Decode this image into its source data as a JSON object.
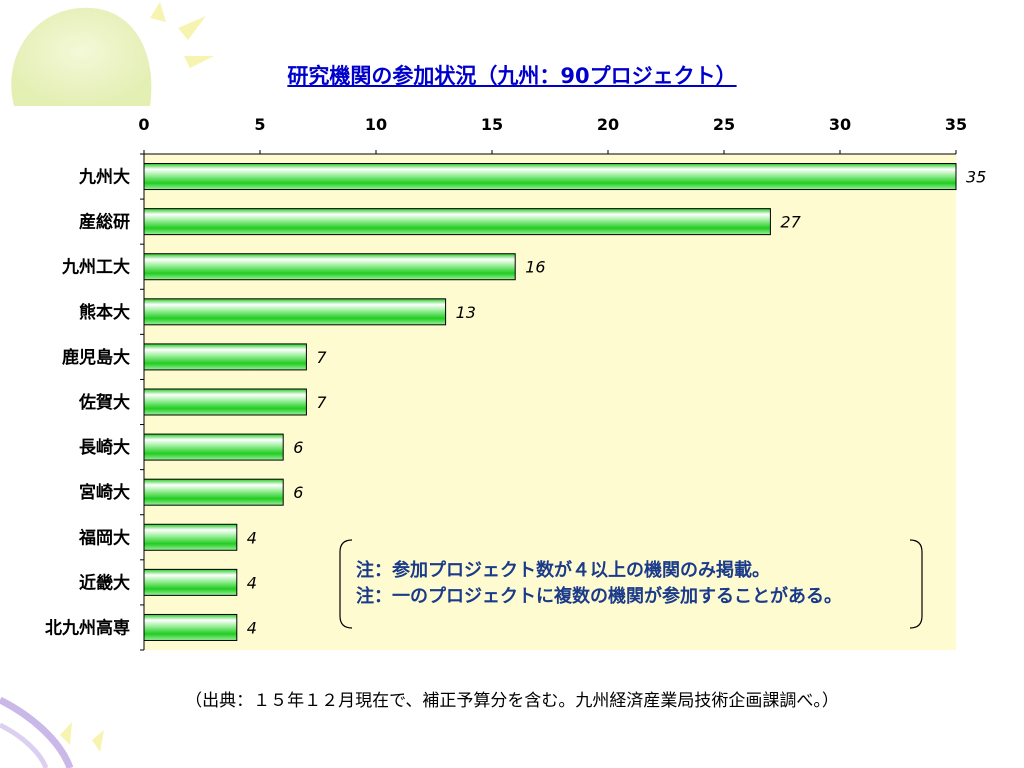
{
  "title": "研究機関の参加状況（九州：90プロジェクト）",
  "notes": [
    "注：参加プロジェクト数が４以上の機関のみ掲載。",
    "注：一のプロジェクトに複数の機関が参加することがある。"
  ],
  "source": "（出典：１５年１２月現在で、補正予算分を含む。九州経済産業局技術企画課調べ。）",
  "colors": {
    "plot_bg": "#fffbd0",
    "bar_light": "#ffffff",
    "bar_mid": "#9cf09c",
    "bar_dark": "#22cc22",
    "title": "#0000cc",
    "note": "#1a3a8a"
  },
  "chart_data": {
    "type": "bar",
    "orientation": "horizontal",
    "categories": [
      "九州大",
      "産総研",
      "九州工大",
      "熊本大",
      "鹿児島大",
      "佐賀大",
      "長崎大",
      "宮崎大",
      "福岡大",
      "近畿大",
      "北九州高専"
    ],
    "values": [
      35,
      27,
      16,
      13,
      7,
      7,
      6,
      6,
      4,
      4,
      4
    ],
    "value_labels": [
      "35",
      "27",
      "16",
      "13",
      "7",
      "7",
      "6",
      "6",
      "4",
      "4",
      "4"
    ],
    "xlim": [
      0,
      35
    ],
    "xticks": [
      "0",
      "5",
      "10",
      "15",
      "20",
      "25",
      "30",
      "35"
    ],
    "axis_position": "top",
    "grid": false,
    "legend": "none"
  }
}
